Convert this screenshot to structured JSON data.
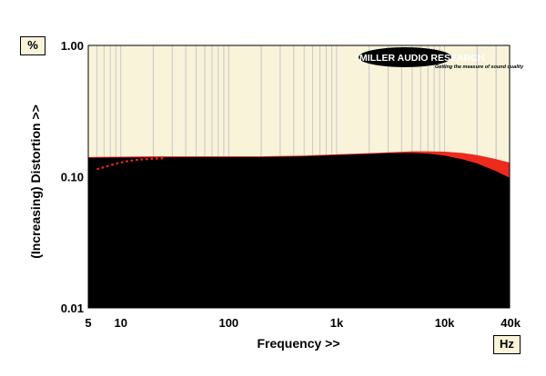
{
  "chart_data": {
    "type": "area",
    "xlabel": "Frequency >>",
    "ylabel": "(Increasing) Distortion >>",
    "x_unit": "Hz",
    "y_unit": "%",
    "x_scale": "log",
    "y_scale": "log",
    "xlim": [
      5,
      40000
    ],
    "ylim": [
      0.01,
      1.0
    ],
    "x_ticks": [
      {
        "value": 5,
        "label": "5"
      },
      {
        "value": 10,
        "label": "10"
      },
      {
        "value": 100,
        "label": "100"
      },
      {
        "value": 1000,
        "label": "1k"
      },
      {
        "value": 10000,
        "label": "10k"
      },
      {
        "value": 40000,
        "label": "40k"
      }
    ],
    "y_ticks": [
      {
        "value": 1.0,
        "label": "1.00"
      },
      {
        "value": 0.1,
        "label": "0.10"
      },
      {
        "value": 0.01,
        "label": "0.01"
      }
    ],
    "grid": true,
    "series": [
      {
        "color": "#ee2a1c",
        "style": "filled",
        "x": [
          5,
          10,
          20,
          50,
          100,
          200,
          500,
          1000,
          2000,
          3000,
          5000,
          7000,
          10000,
          15000,
          20000,
          30000,
          40000
        ],
        "y": [
          0.141,
          0.142,
          0.143,
          0.143,
          0.143,
          0.143,
          0.145,
          0.148,
          0.151,
          0.153,
          0.156,
          0.156,
          0.155,
          0.151,
          0.146,
          0.136,
          0.128
        ]
      },
      {
        "color": "#000000",
        "style": "filled",
        "x": [
          5,
          10,
          20,
          50,
          100,
          200,
          500,
          1000,
          2000,
          3000,
          5000,
          7000,
          10000,
          15000,
          20000,
          30000,
          40000
        ],
        "y": [
          0.139,
          0.14,
          0.14,
          0.141,
          0.141,
          0.141,
          0.143,
          0.146,
          0.149,
          0.151,
          0.152,
          0.15,
          0.145,
          0.135,
          0.126,
          0.11,
          0.098
        ]
      },
      {
        "color": "#ee2a1c",
        "style": "dotted",
        "x": [
          6,
          7,
          8,
          10,
          12,
          15,
          20,
          25
        ],
        "y": [
          0.114,
          0.118,
          0.122,
          0.128,
          0.132,
          0.135,
          0.137,
          0.138
        ]
      }
    ],
    "legend": null
  },
  "logo": {
    "name": "MILLER AUDIO RESEARCH",
    "tagline": "Getting the measure of sound quality"
  },
  "colors": {
    "plot_background": "#f8f3d9",
    "grid_line": "#c8c8c8",
    "fill_black": "#000000",
    "fill_red": "#ee2a1c"
  }
}
